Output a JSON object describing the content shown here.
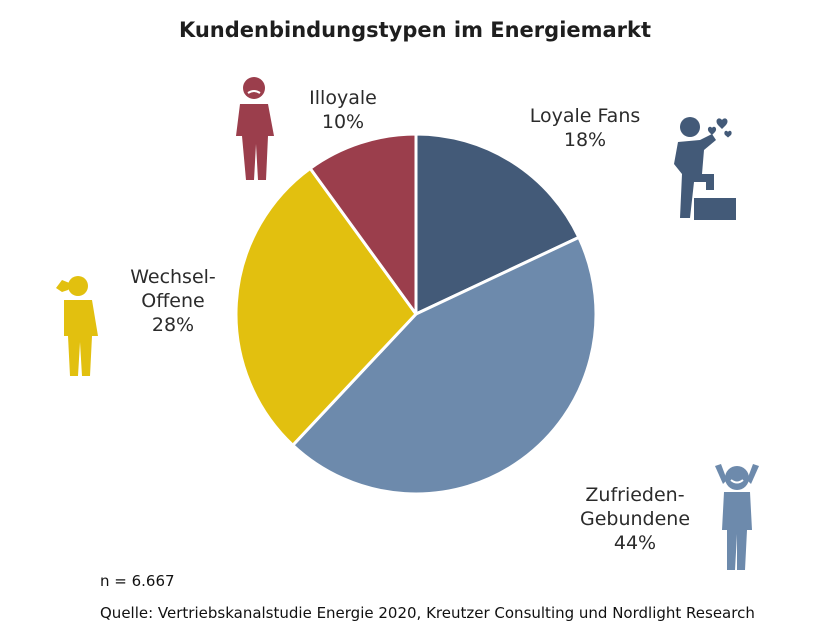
{
  "chart_data": {
    "type": "pie",
    "title": "Kundenbindungstypen im Energiemarkt",
    "slices": [
      {
        "label_lines": [
          "Loyale Fans"
        ],
        "pct_label": "18%",
        "value": 18,
        "color": "#435a78",
        "icon": "fan-celebrating-icon"
      },
      {
        "label_lines": [
          "Zufrieden-",
          "Gebundene"
        ],
        "pct_label": "44%",
        "value": 44,
        "color": "#6d8aac",
        "icon": "relaxed-person-icon"
      },
      {
        "label_lines": [
          "Wechsel-",
          "Offene"
        ],
        "pct_label": "28%",
        "value": 28,
        "color": "#e2c00f",
        "icon": "thinking-person-icon"
      },
      {
        "label_lines": [
          "Illoyale"
        ],
        "pct_label": "10%",
        "value": 10,
        "color": "#9b3e4c",
        "icon": "sad-person-icon"
      }
    ]
  },
  "footer": {
    "n": "n = 6.667",
    "source": "Quelle: Vertriebskanalstudie Energie 2020, Kreutzer Consulting und Nordlight Research"
  }
}
